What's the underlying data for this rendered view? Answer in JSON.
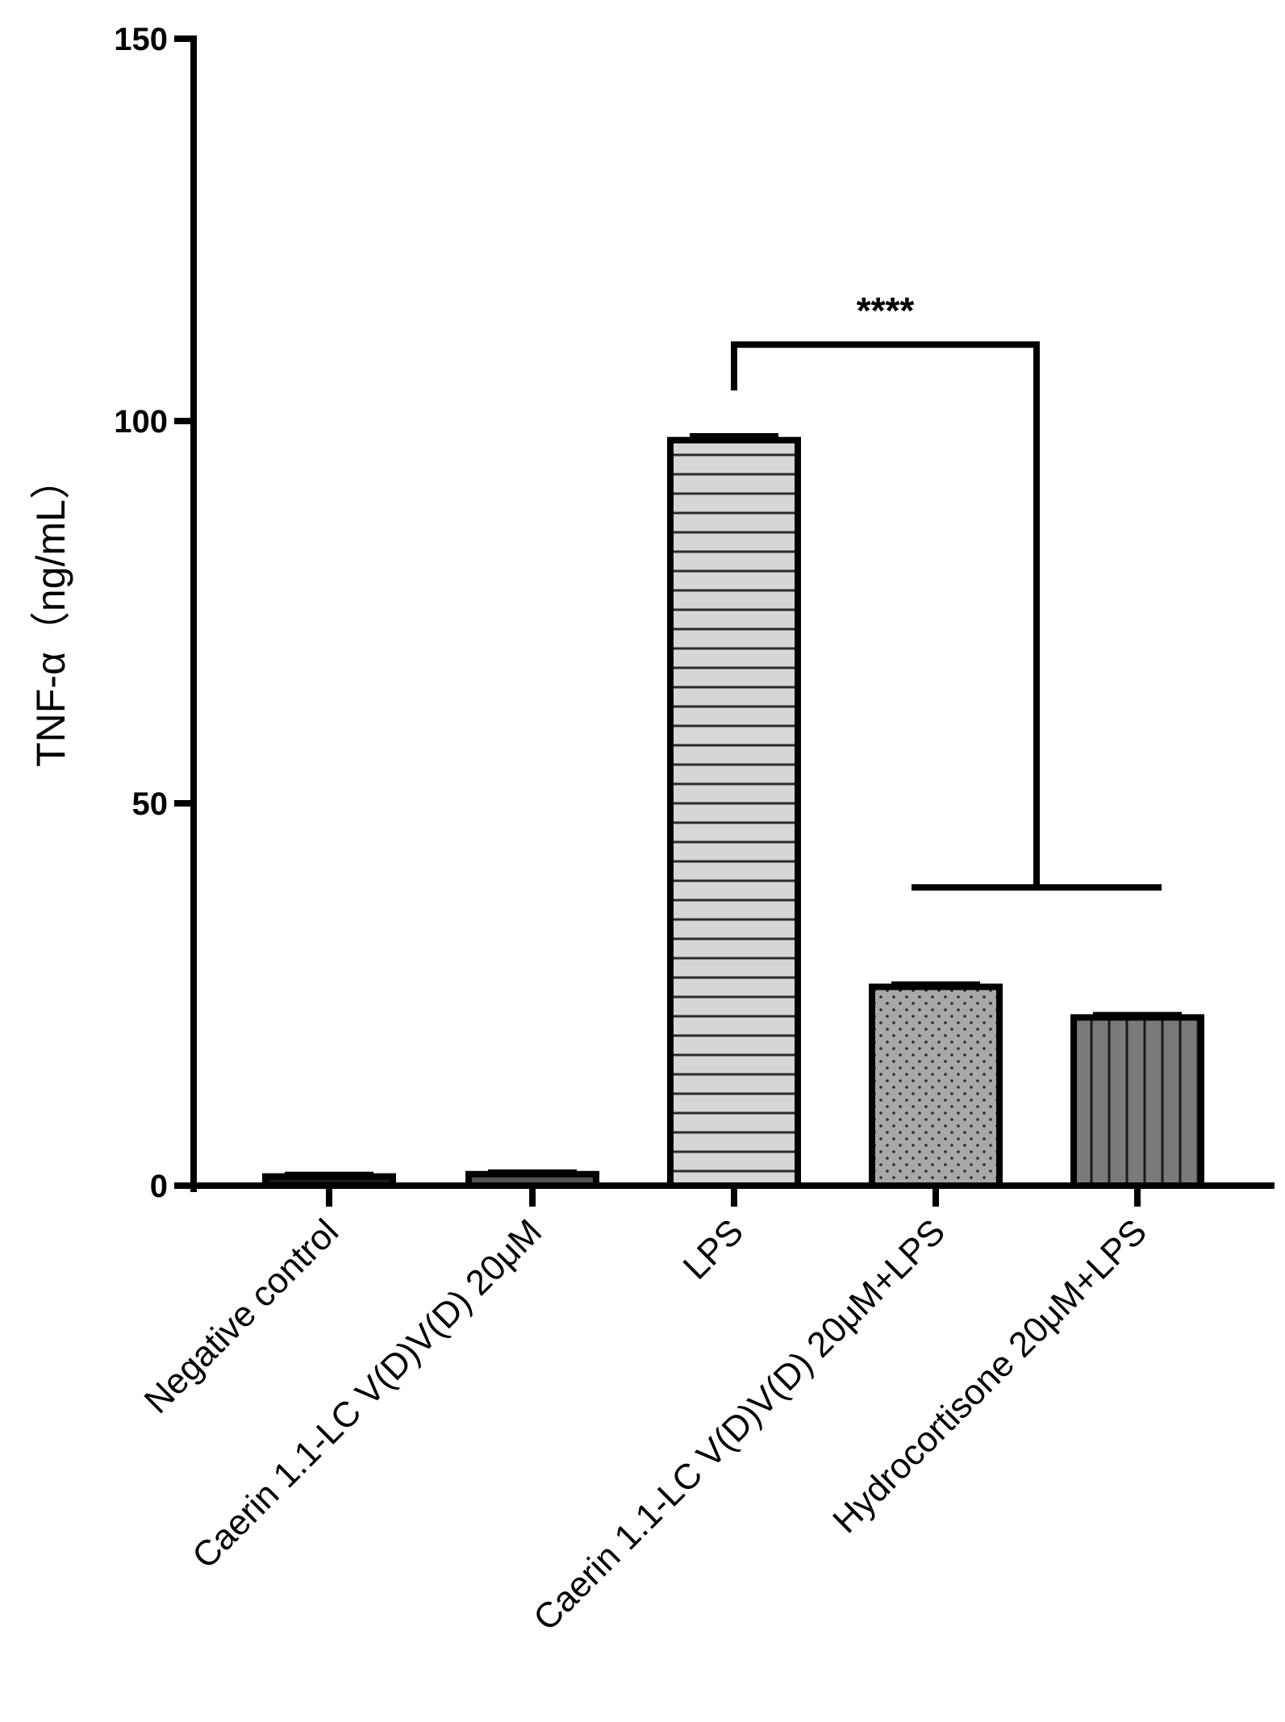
{
  "chart_data": {
    "type": "bar",
    "title": "",
    "xlabel": "",
    "ylabel": "TNF-α（ng/mL）",
    "ylim": [
      0,
      150
    ],
    "yticks": [
      0,
      50,
      100,
      150
    ],
    "grid": false,
    "categories": [
      "Negative control",
      "Caerin 1.1-LC V(D)V(D) 20μM",
      "LPS",
      "Caerin 1.1-LC V(D)V(D) 20μM+LPS",
      "Hydrocortisone 20μM+LPS"
    ],
    "values": [
      1.2,
      1.5,
      97.5,
      26,
      22
    ],
    "errors": [
      0.3,
      0.3,
      0.6,
      0.4,
      0.4
    ],
    "bar_styles": [
      {
        "fill": "#1a1a1a",
        "pattern": "solid"
      },
      {
        "fill": "#555555",
        "pattern": "solid"
      },
      {
        "fill": "#d6d6d6",
        "pattern": "horizontal-lines"
      },
      {
        "fill": "#a8a8a8",
        "pattern": "dots"
      },
      {
        "fill": "#7a7a7a",
        "pattern": "vertical-lines"
      }
    ],
    "annotations": [
      {
        "text": "****",
        "from": "LPS",
        "to": [
          "Caerin 1.1-LC V(D)V(D) 20μM+LPS",
          "Hydrocortisone 20μM+LPS"
        ]
      }
    ]
  }
}
